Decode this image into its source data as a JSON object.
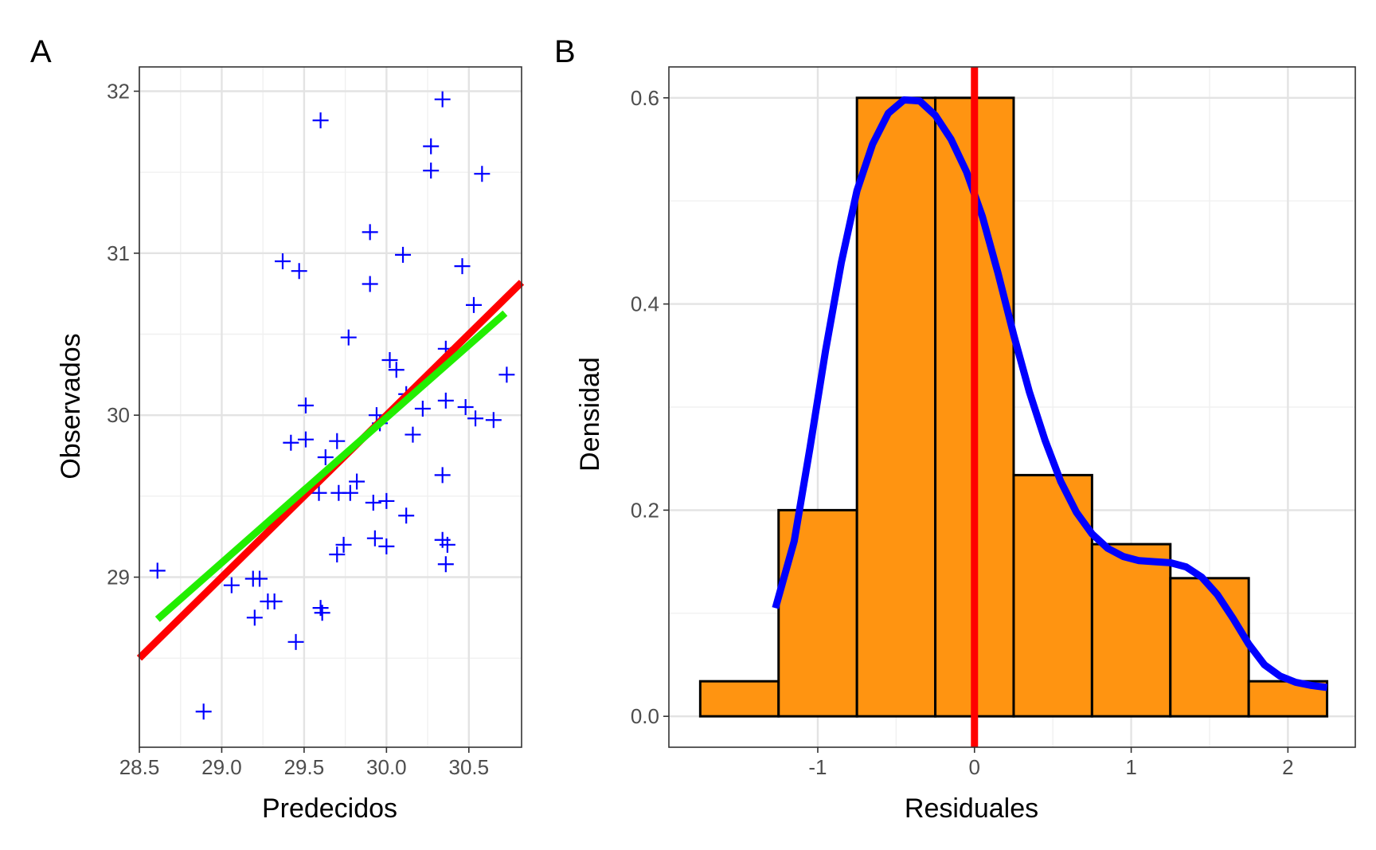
{
  "chart_data": [
    {
      "type": "scatter",
      "tag": "A",
      "xlabel": "Predecidos",
      "ylabel": "Observados",
      "xlim": [
        28.5,
        30.82
      ],
      "ylim": [
        27.95,
        32.15
      ],
      "xticks": [
        28.5,
        29.0,
        29.5,
        30.0,
        30.5
      ],
      "xtick_labels": [
        "28.5",
        "29.0",
        "29.5",
        "30.0",
        "30.5"
      ],
      "yticks": [
        29,
        30,
        31,
        32
      ],
      "ytick_labels": [
        "29",
        "30",
        "31",
        "32"
      ],
      "grid": true,
      "colors": {
        "points": "#0000ff",
        "identity_line": "#ff0000",
        "fit_line": "#22ee00"
      },
      "points": [
        [
          28.61,
          29.04
        ],
        [
          28.89,
          28.17
        ],
        [
          29.06,
          28.95
        ],
        [
          29.19,
          28.99
        ],
        [
          29.23,
          28.99
        ],
        [
          29.2,
          28.75
        ],
        [
          29.28,
          28.85
        ],
        [
          29.32,
          28.85
        ],
        [
          29.37,
          30.95
        ],
        [
          29.47,
          30.89
        ],
        [
          29.45,
          28.6
        ],
        [
          29.42,
          29.83
        ],
        [
          29.51,
          30.06
        ],
        [
          29.51,
          29.85
        ],
        [
          29.6,
          31.82
        ],
        [
          29.6,
          28.81
        ],
        [
          29.61,
          28.78
        ],
        [
          29.59,
          29.52
        ],
        [
          29.63,
          29.74
        ],
        [
          29.7,
          29.84
        ],
        [
          29.71,
          29.52
        ],
        [
          29.7,
          29.14
        ],
        [
          29.74,
          29.2
        ],
        [
          29.77,
          30.48
        ],
        [
          29.78,
          29.52
        ],
        [
          29.82,
          29.59
        ],
        [
          29.9,
          31.13
        ],
        [
          29.9,
          30.81
        ],
        [
          29.92,
          29.46
        ],
        [
          29.93,
          29.24
        ],
        [
          29.94,
          30.0
        ],
        [
          29.96,
          29.95
        ],
        [
          30.0,
          29.47
        ],
        [
          30.0,
          29.19
        ],
        [
          30.02,
          30.34
        ],
        [
          30.06,
          30.28
        ],
        [
          30.1,
          30.99
        ],
        [
          30.12,
          30.13
        ],
        [
          30.12,
          29.38
        ],
        [
          30.16,
          29.88
        ],
        [
          30.22,
          30.04
        ],
        [
          30.27,
          31.66
        ],
        [
          30.27,
          31.51
        ],
        [
          30.34,
          31.95
        ],
        [
          30.36,
          30.41
        ],
        [
          30.39,
          30.37
        ],
        [
          30.34,
          29.63
        ],
        [
          30.34,
          29.23
        ],
        [
          30.37,
          29.2
        ],
        [
          30.36,
          29.08
        ],
        [
          30.36,
          30.09
        ],
        [
          30.46,
          30.92
        ],
        [
          30.48,
          30.05
        ],
        [
          30.53,
          30.68
        ],
        [
          30.54,
          29.98
        ],
        [
          30.58,
          31.49
        ],
        [
          30.65,
          29.97
        ],
        [
          30.73,
          30.25
        ]
      ],
      "identity_line": [
        [
          28.5,
          28.5
        ],
        [
          30.82,
          30.82
        ]
      ],
      "fit_line": [
        [
          28.61,
          28.74
        ],
        [
          30.72,
          30.63
        ]
      ]
    },
    {
      "type": "bar",
      "tag": "B",
      "xlabel": "Residuales",
      "ylabel": "Densidad",
      "xlim": [
        -1.95,
        2.43
      ],
      "ylim": [
        -0.03,
        0.63
      ],
      "xticks": [
        -1,
        0,
        1,
        2
      ],
      "xtick_labels": [
        "-1",
        "0",
        "1",
        "2"
      ],
      "yticks": [
        0.0,
        0.2,
        0.4,
        0.6
      ],
      "ytick_labels": [
        "0.0",
        "0.2",
        "0.4",
        "0.6"
      ],
      "grid": true,
      "colors": {
        "bars": "#ff9411",
        "bar_outline": "#000000",
        "density_curve": "#0000ff",
        "zero_line": "#ff0000"
      },
      "bin_edges": [
        -1.75,
        -1.25,
        -0.75,
        -0.25,
        0.25,
        0.75,
        1.25,
        1.75,
        2.25
      ],
      "densities": [
        0.034,
        0.2,
        0.6,
        0.6,
        0.234,
        0.167,
        0.134,
        0.034
      ],
      "zero_line_x": 0,
      "density_curve": [
        [
          -1.27,
          0.105
        ],
        [
          -1.15,
          0.17
        ],
        [
          -1.05,
          0.26
        ],
        [
          -0.95,
          0.355
        ],
        [
          -0.85,
          0.44
        ],
        [
          -0.75,
          0.51
        ],
        [
          -0.65,
          0.555
        ],
        [
          -0.55,
          0.585
        ],
        [
          -0.45,
          0.598
        ],
        [
          -0.35,
          0.597
        ],
        [
          -0.25,
          0.583
        ],
        [
          -0.15,
          0.56
        ],
        [
          -0.05,
          0.528
        ],
        [
          0.05,
          0.485
        ],
        [
          0.15,
          0.43
        ],
        [
          0.25,
          0.37
        ],
        [
          0.35,
          0.315
        ],
        [
          0.45,
          0.268
        ],
        [
          0.55,
          0.228
        ],
        [
          0.65,
          0.198
        ],
        [
          0.75,
          0.177
        ],
        [
          0.85,
          0.163
        ],
        [
          0.95,
          0.155
        ],
        [
          1.05,
          0.151
        ],
        [
          1.15,
          0.15
        ],
        [
          1.25,
          0.149
        ],
        [
          1.35,
          0.145
        ],
        [
          1.45,
          0.135
        ],
        [
          1.55,
          0.118
        ],
        [
          1.65,
          0.095
        ],
        [
          1.75,
          0.07
        ],
        [
          1.85,
          0.05
        ],
        [
          1.95,
          0.039
        ],
        [
          2.05,
          0.033
        ],
        [
          2.15,
          0.03
        ],
        [
          2.25,
          0.028
        ]
      ]
    }
  ]
}
